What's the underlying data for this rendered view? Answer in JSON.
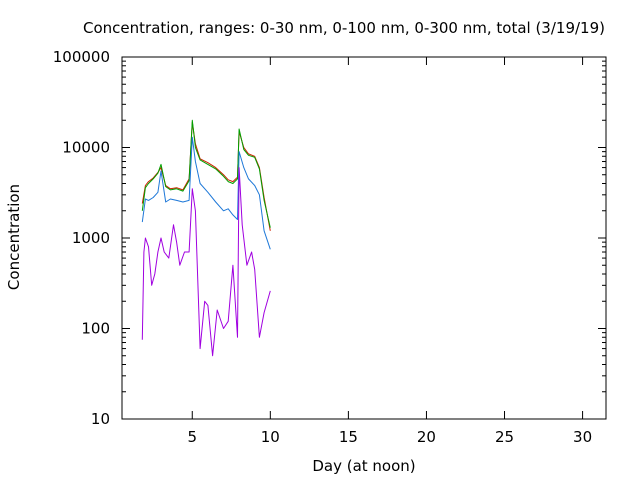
{
  "chart_data": {
    "type": "line",
    "title": "Concentration, ranges: 0-30 nm, 0-100 nm, 0-300 nm, total (3/19/19)",
    "xlabel": "Day (at noon)",
    "ylabel": "Concentration",
    "xlim": [
      0.5,
      31.5
    ],
    "ylim": [
      10,
      100000
    ],
    "yscale": "log",
    "xticks": [
      5,
      10,
      15,
      20,
      25,
      30
    ],
    "xtick_labels": [
      "5",
      "10",
      "15",
      "20",
      "25",
      "30"
    ],
    "yticks": [
      10,
      100,
      1000,
      10000,
      100000
    ],
    "ytick_labels": [
      "10",
      "100",
      "1000",
      "10000",
      "100000"
    ],
    "grid": false,
    "legend": "none",
    "series": [
      {
        "color": "#cc2200",
        "x": [
          1.8,
          2.0,
          2.2,
          2.5,
          2.8,
          3.0,
          3.3,
          3.6,
          4.0,
          4.4,
          4.8,
          5.0,
          5.2,
          5.5,
          6.0,
          6.5,
          7.0,
          7.3,
          7.6,
          7.9,
          8.0,
          8.3,
          8.6,
          9.0,
          9.3,
          9.6,
          10.0
        ],
        "y": [
          2400,
          3800,
          4200,
          4600,
          5300,
          6000,
          3800,
          3500,
          3600,
          3400,
          4500,
          19000,
          11000,
          7500,
          6800,
          6000,
          5000,
          4400,
          4200,
          4700,
          15000,
          10000,
          8500,
          8000,
          6000,
          2800,
          1200
        ]
      },
      {
        "color": "#00a000",
        "x": [
          1.8,
          2.0,
          2.2,
          2.5,
          2.8,
          3.0,
          3.3,
          3.6,
          4.0,
          4.4,
          4.8,
          5.0,
          5.2,
          5.5,
          6.0,
          6.5,
          7.0,
          7.3,
          7.6,
          7.9,
          8.0,
          8.3,
          8.6,
          9.0,
          9.3,
          9.6,
          10.0
        ],
        "y": [
          2000,
          3600,
          4000,
          4500,
          5200,
          6500,
          3700,
          3400,
          3500,
          3300,
          4300,
          20000,
          10000,
          7300,
          6500,
          5800,
          4800,
          4200,
          4000,
          4500,
          16000,
          9500,
          8200,
          7800,
          5800,
          2600,
          1300
        ]
      },
      {
        "color": "#1e78d8",
        "x": [
          1.8,
          2.0,
          2.2,
          2.5,
          2.8,
          3.0,
          3.3,
          3.6,
          4.0,
          4.4,
          4.8,
          5.0,
          5.2,
          5.5,
          6.0,
          6.5,
          7.0,
          7.3,
          7.6,
          7.9,
          8.0,
          8.3,
          8.6,
          9.0,
          9.3,
          9.6,
          10.0
        ],
        "y": [
          1500,
          2700,
          2600,
          2800,
          3200,
          5500,
          2500,
          2700,
          2600,
          2500,
          2600,
          13000,
          7000,
          4000,
          3200,
          2500,
          2000,
          2100,
          1800,
          1600,
          9000,
          6000,
          4500,
          3800,
          3000,
          1200,
          750
        ]
      },
      {
        "color": "#a000e0",
        "x": [
          1.8,
          1.9,
          2.0,
          2.2,
          2.4,
          2.6,
          2.8,
          3.0,
          3.2,
          3.5,
          3.8,
          4.0,
          4.2,
          4.5,
          4.8,
          5.0,
          5.2,
          5.5,
          5.8,
          6.0,
          6.3,
          6.6,
          7.0,
          7.3,
          7.6,
          7.9,
          8.0,
          8.2,
          8.5,
          8.8,
          9.0,
          9.3,
          9.6,
          10.0
        ],
        "y": [
          75,
          700,
          1000,
          800,
          300,
          400,
          700,
          1000,
          700,
          600,
          1400,
          900,
          500,
          700,
          700,
          3500,
          2000,
          60,
          200,
          180,
          50,
          160,
          100,
          120,
          500,
          80,
          6000,
          1400,
          500,
          700,
          450,
          80,
          150,
          260
        ]
      }
    ]
  }
}
